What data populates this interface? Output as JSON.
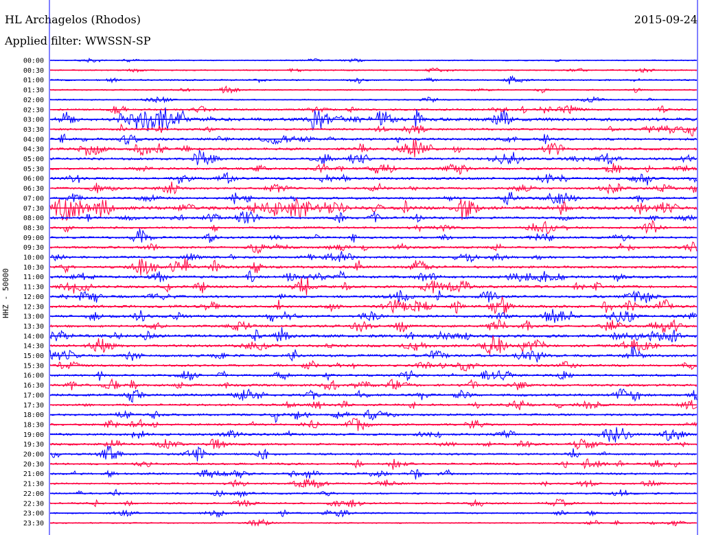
{
  "header": {
    "station": "HL Archagelos (Rhodos)",
    "filter": "Applied filter: WWSSN-SP",
    "date": "2015-09-24",
    "channel": "HHZ - 50000"
  },
  "chart_data": {
    "type": "line",
    "title": "HL Archagelos (Rhodos)",
    "subtitle": "Applied filter: WWSSN-SP",
    "ylabel": "HHZ - 50000",
    "xlabel": "",
    "ytick_labels": [
      "00:00",
      "00:30",
      "01:00",
      "01:30",
      "02:00",
      "02:30",
      "03:00",
      "03:30",
      "04:00",
      "04:30",
      "05:00",
      "05:30",
      "06:00",
      "06:30",
      "07:00",
      "07:30",
      "08:00",
      "08:30",
      "09:00",
      "09:30",
      "10:00",
      "10:30",
      "11:00",
      "11:30",
      "12:00",
      "12:30",
      "13:00",
      "13:30",
      "14:00",
      "14:30",
      "15:00",
      "15:30",
      "16:00",
      "16:30",
      "17:00",
      "17:30",
      "18:00",
      "18:30",
      "19:00",
      "19:30",
      "20:00",
      "20:30",
      "21:00",
      "21:30",
      "22:00",
      "22:30",
      "23:00",
      "23:30"
    ],
    "trace_colors": [
      "#0000ff",
      "#ff0040"
    ],
    "trace_amplitude_level": [
      0.08,
      0.12,
      0.22,
      0.15,
      0.12,
      0.35,
      0.95,
      0.45,
      0.55,
      0.55,
      0.55,
      0.5,
      0.55,
      0.5,
      0.5,
      0.95,
      0.55,
      0.45,
      0.45,
      0.5,
      0.5,
      0.6,
      0.6,
      0.6,
      0.6,
      0.65,
      0.6,
      0.55,
      0.7,
      0.65,
      0.6,
      0.5,
      0.45,
      0.55,
      0.55,
      0.45,
      0.45,
      0.4,
      0.5,
      0.45,
      0.4,
      0.4,
      0.4,
      0.3,
      0.3,
      0.3,
      0.25,
      0.15
    ],
    "grid": false,
    "legend": "none"
  }
}
